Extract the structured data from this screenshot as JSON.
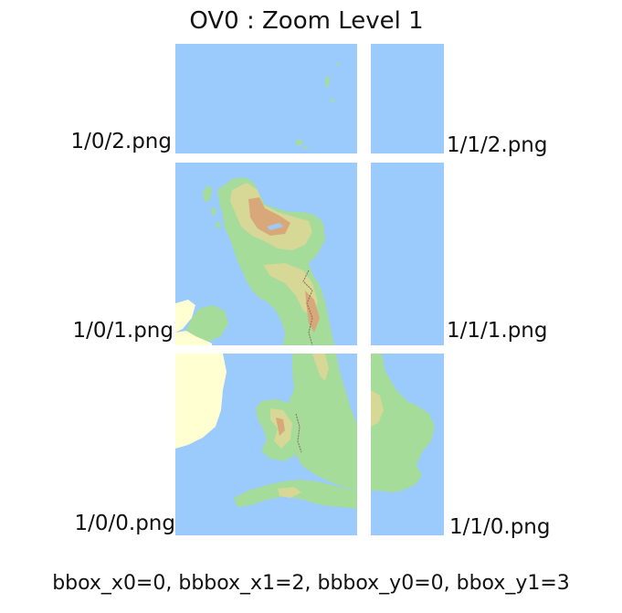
{
  "title": "OV0 : Zoom Level 1",
  "colors": {
    "sea": "#9bcafc",
    "lowland": "#a6dc9a",
    "midland": "#d7d796",
    "highland": "#d9a87a",
    "foreign_land": "#ffffd2",
    "gap": "#ffffff"
  },
  "tiles": [
    {
      "id": "1/0/2",
      "label": "1/0/2.png"
    },
    {
      "id": "1/1/2",
      "label": "1/1/2.png"
    },
    {
      "id": "1/0/1",
      "label": "1/0/1.png"
    },
    {
      "id": "1/1/1",
      "label": "1/1/1.png"
    },
    {
      "id": "1/0/0",
      "label": "1/0/0.png"
    },
    {
      "id": "1/1/0",
      "label": "1/1/0.png"
    }
  ],
  "footer": "bbox_x0=0, bbbox_x1=2, bbbox_y0=0, bbox_y1=3"
}
